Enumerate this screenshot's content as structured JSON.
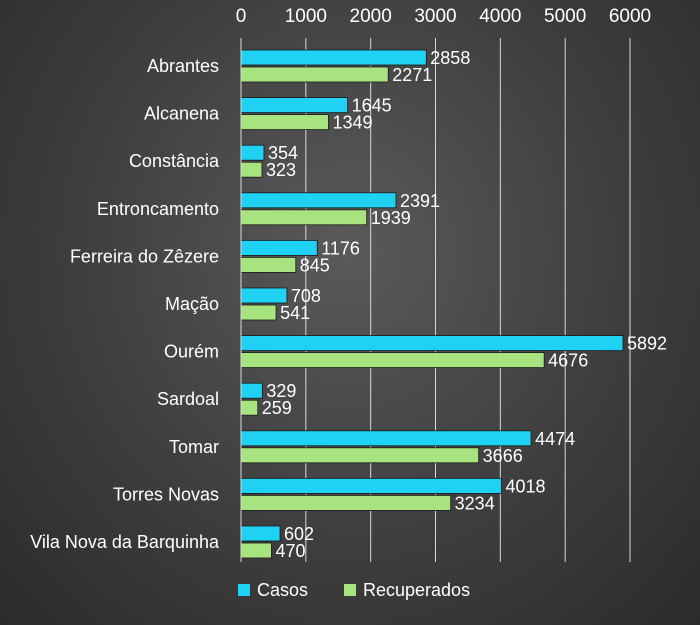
{
  "chart_data": {
    "type": "bar",
    "orientation": "horizontal",
    "categories": [
      "Abrantes",
      "Alcanena",
      "Constância",
      "Entroncamento",
      "Ferreira do Zêzere",
      "Mação",
      "Ourém",
      "Sardoal",
      "Tomar",
      "Torres Novas",
      "Vila Nova da Barquinha"
    ],
    "series": [
      {
        "name": "Casos",
        "color": "#1fd1f2",
        "values": [
          2858,
          1645,
          354,
          2391,
          1176,
          708,
          5892,
          329,
          4474,
          4018,
          602
        ]
      },
      {
        "name": "Recuperados",
        "color": "#a7e37e",
        "values": [
          2271,
          1349,
          323,
          1939,
          845,
          541,
          4676,
          259,
          3666,
          3234,
          470
        ]
      }
    ],
    "xlim": [
      0,
      6000
    ],
    "xticks": [
      0,
      1000,
      2000,
      3000,
      4000,
      5000,
      6000
    ],
    "xaxis_position": "top",
    "grid": true,
    "legend": "bottom-left",
    "data_labels": true
  }
}
